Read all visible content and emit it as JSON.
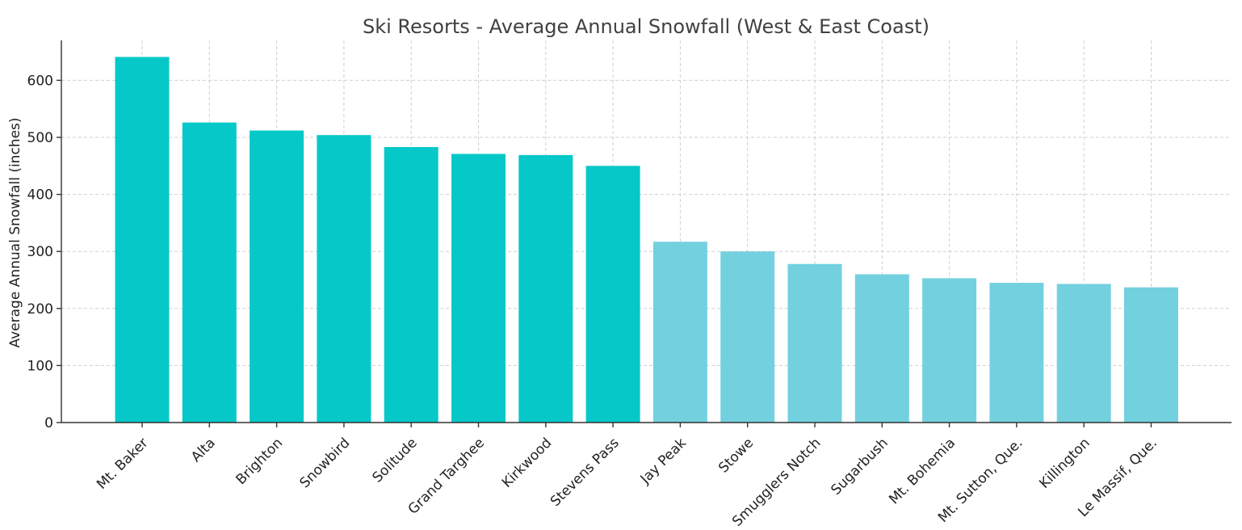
{
  "chart_data": {
    "type": "bar",
    "title": "Ski Resorts - Average Annual Snowfall (West & East Coast)",
    "xlabel": "",
    "ylabel": "Average Annual Snowfall (inches)",
    "ylim": [
      0,
      670
    ],
    "yticks": [
      0,
      100,
      200,
      300,
      400,
      500,
      600
    ],
    "grid": true,
    "categories": [
      "Mt. Baker",
      "Alta",
      "Brighton",
      "Snowbird",
      "Solitude",
      "Grand Targhee",
      "Kirkwood",
      "Stevens Pass",
      "Jay Peak",
      "Stowe",
      "Smugglers Notch",
      "Sugarbush",
      "Mt. Bohemia",
      "Mt. Sutton, Que.",
      "Killington",
      "Le Massif, Que."
    ],
    "values": [
      641,
      526,
      512,
      504,
      483,
      471,
      469,
      450,
      317,
      300,
      278,
      260,
      253,
      245,
      243,
      237
    ],
    "colors": {
      "west": "#06c8c8",
      "east": "#73d1df"
    },
    "bar_groups": [
      "west",
      "west",
      "west",
      "west",
      "west",
      "west",
      "west",
      "west",
      "east",
      "east",
      "east",
      "east",
      "east",
      "east",
      "east",
      "east"
    ]
  }
}
